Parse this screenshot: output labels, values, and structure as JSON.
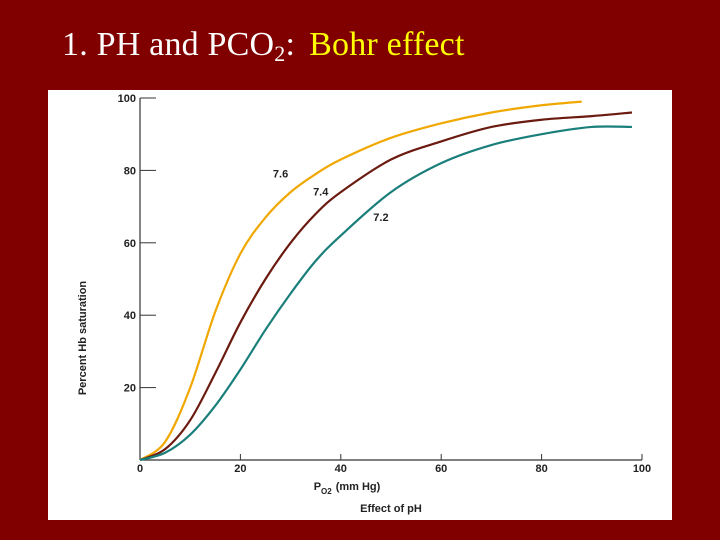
{
  "slide": {
    "title_prefix": "1. PH and PCO",
    "title_sub": "2",
    "title_colon": ":",
    "title_accent": "Bohr effect"
  },
  "colors": {
    "background": "#800000",
    "title": "#ffffff",
    "accent": "#ffff00",
    "series_7_6": "#f0a800",
    "series_7_4": "#6b1a10",
    "series_7_2": "#1a7f7a"
  },
  "chart_data": {
    "type": "line",
    "title": "",
    "caption": "Effect of pH",
    "xlabel_main": "P",
    "xlabel_sub": "O2",
    "xlabel_unit": "(mm Hg)",
    "ylabel": "Percent Hb saturation",
    "xlim": [
      0,
      100
    ],
    "ylim": [
      0,
      100
    ],
    "x_ticks": [
      0,
      20,
      40,
      60,
      80,
      100
    ],
    "y_ticks": [
      20,
      40,
      60,
      80,
      100
    ],
    "grid": false,
    "series": [
      {
        "name": "7.6",
        "color": "#f0a800",
        "x": [
          0,
          5,
          10,
          15,
          20,
          25,
          30,
          35,
          40,
          50,
          60,
          70,
          80,
          88
        ],
        "y": [
          0,
          5,
          20,
          41,
          57,
          67,
          74,
          79,
          83,
          89,
          93,
          96,
          98,
          99
        ]
      },
      {
        "name": "7.4",
        "color": "#6b1a10",
        "x": [
          0,
          5,
          10,
          15,
          20,
          25,
          30,
          35,
          40,
          50,
          60,
          70,
          80,
          90,
          98
        ],
        "y": [
          0,
          3,
          11,
          24,
          38,
          50,
          60,
          68,
          74,
          83,
          88,
          92,
          94,
          95,
          96
        ]
      },
      {
        "name": "7.2",
        "color": "#1a7f7a",
        "x": [
          0,
          5,
          10,
          15,
          20,
          25,
          30,
          35,
          40,
          50,
          60,
          70,
          80,
          90,
          98
        ],
        "y": [
          0,
          2,
          7,
          15,
          25,
          36,
          46,
          55,
          62,
          74,
          82,
          87,
          90,
          92,
          92
        ]
      }
    ]
  }
}
